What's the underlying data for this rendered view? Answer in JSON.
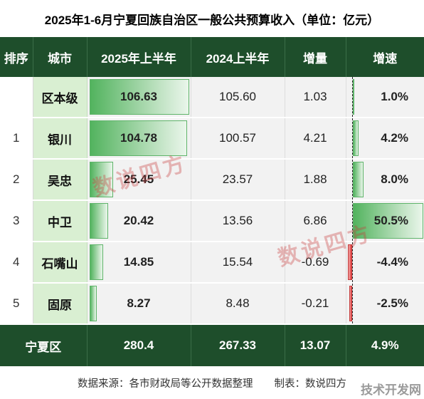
{
  "title": "2025年1-6月宁夏回族自治区一般公共预算收入（单位：亿元）",
  "headers": [
    "排序",
    "城市",
    "2025年上半年",
    "2024上半年",
    "增量",
    "增速"
  ],
  "rows": [
    {
      "rank": "",
      "city": "区本级",
      "y2025": "106.63",
      "y2024": "105.60",
      "delta": "1.03",
      "growth": "1.0%"
    },
    {
      "rank": "1",
      "city": "银川",
      "y2025": "104.78",
      "y2024": "100.57",
      "delta": "4.21",
      "growth": "4.2%"
    },
    {
      "rank": "2",
      "city": "吴忠",
      "y2025": "25.45",
      "y2024": "23.57",
      "delta": "1.88",
      "growth": "8.0%"
    },
    {
      "rank": "3",
      "city": "中卫",
      "y2025": "20.42",
      "y2024": "13.56",
      "delta": "6.86",
      "growth": "50.5%"
    },
    {
      "rank": "4",
      "city": "石嘴山",
      "y2025": "14.85",
      "y2024": "15.54",
      "delta": "-0.69",
      "growth": "-4.4%"
    },
    {
      "rank": "5",
      "city": "固原",
      "y2025": "8.27",
      "y2024": "8.48",
      "delta": "-0.21",
      "growth": "-2.5%"
    }
  ],
  "total": {
    "city": "宁夏区",
    "y2025": "280.4",
    "y2024": "267.33",
    "delta": "13.07",
    "growth": "4.9%"
  },
  "footer": {
    "source": "数据来源：各市财政局等公开数据整理",
    "maker": "制表：数说四方"
  },
  "watermark": "数说四方",
  "site_logo": "技术开发网",
  "colors": {
    "header_bg": "#1e4e2b",
    "city_bg": "#d9efd2",
    "bar_green": "#52b35e",
    "bar_red": "#e23b3b"
  },
  "chart_data": {
    "type": "table",
    "title": "2025年1-6月宁夏回族自治区一般公共预算收入（单位：亿元）",
    "columns": [
      "排序",
      "城市",
      "2025年上半年",
      "2024上半年",
      "增量",
      "增速"
    ],
    "categories": [
      "区本级",
      "银川",
      "吴忠",
      "中卫",
      "石嘴山",
      "固原"
    ],
    "series": [
      {
        "name": "2025年上半年",
        "values": [
          106.63,
          104.78,
          25.45,
          20.42,
          14.85,
          8.27
        ]
      },
      {
        "name": "2024上半年",
        "values": [
          105.6,
          100.57,
          23.57,
          13.56,
          15.54,
          8.48
        ]
      },
      {
        "name": "增量",
        "values": [
          1.03,
          4.21,
          1.88,
          6.86,
          -0.69,
          -0.21
        ]
      },
      {
        "name": "增速",
        "values": [
          1.0,
          4.2,
          8.0,
          50.5,
          -4.4,
          -2.5
        ]
      }
    ],
    "total": {
      "name": "宁夏区",
      "values": [
        280.4,
        267.33,
        13.07,
        4.9
      ]
    }
  }
}
